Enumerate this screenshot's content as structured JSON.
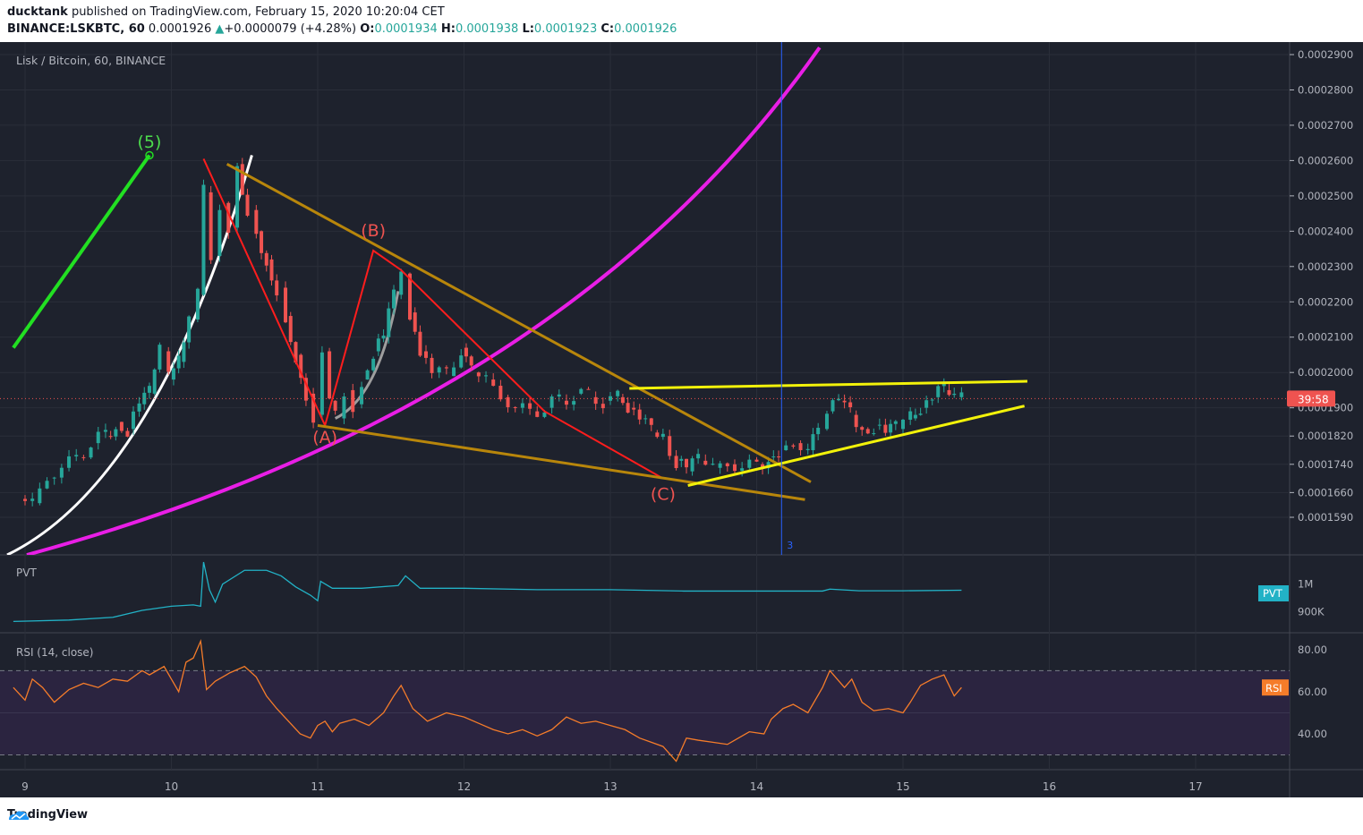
{
  "header": {
    "author": "ducktank",
    "published_text": " published on TradingView.com, February 15, 2020 10:20:04 CET",
    "symbol": "BINANCE:LSKBTC, 60",
    "last": "0.0001926",
    "change": "+0.0000079 (+4.28%)",
    "o_label": "O:",
    "o_val": "0.0001934",
    "h_label": "H:",
    "h_val": "0.0001938",
    "l_label": "L:",
    "l_val": "0.0001923",
    "c_label": "C:",
    "c_val": "0.0001926"
  },
  "footer": {
    "brand": "TradingView"
  },
  "chart_data": {
    "type": "candlestick",
    "title": "Lisk / Bitcoin, 60, BINANCE",
    "x_ticks": [
      "9",
      "10",
      "11",
      "12",
      "13",
      "14",
      "15",
      "16",
      "17"
    ],
    "y_ticks": [
      "0.0002900",
      "0.0002800",
      "0.0002700",
      "0.0002600",
      "0.0002500",
      "0.0002400",
      "0.0002300",
      "0.0002200",
      "0.0002100",
      "0.0002000",
      "0.0001900",
      "0.0001820",
      "0.0001740",
      "0.0001660",
      "0.0001590"
    ],
    "y_range": [
      0.000156,
      0.000291
    ],
    "price_tag": {
      "text": "39:58",
      "value": 0.0001926,
      "color": "#ef5350"
    },
    "close_path": [
      [
        8.95,
        0.0001642
      ],
      [
        9.05,
        0.000163
      ],
      [
        9.15,
        0.00017
      ],
      [
        9.25,
        0.000173
      ],
      [
        9.35,
        0.000176
      ],
      [
        9.45,
        0.00018
      ],
      [
        9.55,
        0.000182
      ],
      [
        9.62,
        0.000186
      ],
      [
        9.7,
        0.000184
      ],
      [
        9.78,
        0.000191
      ],
      [
        9.85,
        0.000194
      ],
      [
        9.92,
        0.000206
      ],
      [
        9.98,
        0.000198
      ],
      [
        10.05,
        0.000203
      ],
      [
        10.12,
        0.000215
      ],
      [
        10.18,
        0.000222
      ],
      [
        10.22,
        0.000251
      ],
      [
        10.27,
        0.000233
      ],
      [
        10.33,
        0.000248
      ],
      [
        10.39,
        0.000241
      ],
      [
        10.45,
        0.000259
      ],
      [
        10.52,
        0.000246
      ],
      [
        10.58,
        0.00024
      ],
      [
        10.65,
        0.000232
      ],
      [
        10.72,
        0.000224
      ],
      [
        10.78,
        0.000216
      ],
      [
        10.85,
        0.000205
      ],
      [
        10.92,
        0.000194
      ],
      [
        10.97,
        0.000188
      ],
      [
        11.03,
        0.000206
      ],
      [
        11.08,
        0.000192
      ],
      [
        11.12,
        0.000187
      ],
      [
        11.18,
        0.000195
      ],
      [
        11.24,
        0.000191
      ],
      [
        11.3,
        0.000198
      ],
      [
        11.38,
        0.000206
      ],
      [
        11.45,
        0.00021
      ],
      [
        11.52,
        0.000222
      ],
      [
        11.57,
        0.000228
      ],
      [
        11.63,
        0.000217
      ],
      [
        11.7,
        0.000206
      ],
      [
        11.78,
        0.0002
      ],
      [
        11.88,
        0.000199
      ],
      [
        11.98,
        0.000207
      ],
      [
        12.05,
        0.0002
      ],
      [
        12.15,
        0.000198
      ],
      [
        12.25,
        0.000193
      ],
      [
        12.35,
        0.00019
      ],
      [
        12.45,
        0.000189
      ],
      [
        12.55,
        0.00019
      ],
      [
        12.65,
        0.000192
      ],
      [
        12.75,
        0.000194
      ],
      [
        12.85,
        0.000193
      ],
      [
        12.95,
        0.000192
      ],
      [
        13.05,
        0.000193
      ],
      [
        13.12,
        0.00019
      ],
      [
        13.2,
        0.000187
      ],
      [
        13.28,
        0.000183
      ],
      [
        13.36,
        0.000182
      ],
      [
        13.45,
        0.000175
      ],
      [
        13.52,
        0.000172
      ],
      [
        13.6,
        0.000175
      ],
      [
        13.7,
        0.000173
      ],
      [
        13.8,
        0.000174
      ],
      [
        13.9,
        0.000173
      ],
      [
        14.0,
        0.000174
      ],
      [
        14.08,
        0.000176
      ],
      [
        14.15,
        0.000178
      ],
      [
        14.25,
        0.00018
      ],
      [
        14.35,
        0.000178
      ],
      [
        14.42,
        0.000184
      ],
      [
        14.48,
        0.000189
      ],
      [
        14.56,
        0.000192
      ],
      [
        14.64,
        0.000188
      ],
      [
        14.72,
        0.000184
      ],
      [
        14.8,
        0.000185
      ],
      [
        14.88,
        0.000183
      ],
      [
        14.95,
        0.000184
      ],
      [
        15.05,
        0.000187
      ],
      [
        15.12,
        0.00019
      ],
      [
        15.2,
        0.000193
      ],
      [
        15.28,
        0.000195
      ],
      [
        15.35,
        0.000193
      ],
      [
        15.4,
        0.0001926
      ]
    ],
    "drawings": {
      "wave_labels": [
        {
          "text": "(5)",
          "x": 9.85,
          "y": 0.0002636,
          "color": "#4cdc4c"
        },
        {
          "text": "(B)",
          "x": 11.38,
          "y": 0.0002385,
          "color": "#ef5350"
        },
        {
          "text": "(A)",
          "x": 11.05,
          "y": 0.00018,
          "color": "#ef5350"
        },
        {
          "text": "(C)",
          "x": 13.36,
          "y": 0.000164,
          "color": "#ef5350"
        }
      ],
      "green_line": [
        [
          8.92,
          0.000207
        ],
        [
          9.85,
          0.0002615
        ]
      ],
      "abc_path": [
        [
          10.22,
          0.0002605
        ],
        [
          11.05,
          0.000185
        ],
        [
          11.38,
          0.0002345
        ],
        [
          11.57,
          0.000229
        ],
        [
          12.55,
          0.000189
        ],
        [
          13.36,
          0.00017
        ]
      ],
      "wedge_upper": [
        [
          10.38,
          0.000259
        ],
        [
          14.37,
          0.000169
        ]
      ],
      "wedge_lower": [
        [
          11.0,
          0.000185
        ],
        [
          14.33,
          0.000164
        ]
      ],
      "yellow_upper": [
        [
          13.13,
          0.0001955
        ],
        [
          15.85,
          0.0001975
        ]
      ],
      "yellow_lower": [
        [
          13.53,
          0.000168
        ],
        [
          15.83,
          0.0001905
        ]
      ],
      "vline_x": 14.17,
      "vline_label": "3"
    },
    "pvt": {
      "label": "PVT",
      "y_ticks": [
        "1M",
        "900K"
      ],
      "tag": "PVT",
      "color": "#22b2c6",
      "range": [
        0.85,
        1.08
      ],
      "values": [
        [
          8.92,
          0.865
        ],
        [
          9.3,
          0.87
        ],
        [
          9.6,
          0.88
        ],
        [
          9.8,
          0.905
        ],
        [
          10.0,
          0.92
        ],
        [
          10.15,
          0.925
        ],
        [
          10.2,
          0.92
        ],
        [
          10.22,
          1.08
        ],
        [
          10.26,
          0.98
        ],
        [
          10.3,
          0.935
        ],
        [
          10.35,
          1.0
        ],
        [
          10.5,
          1.05
        ],
        [
          10.65,
          1.05
        ],
        [
          10.75,
          1.03
        ],
        [
          10.85,
          0.99
        ],
        [
          10.95,
          0.96
        ],
        [
          11.0,
          0.94
        ],
        [
          11.02,
          1.01
        ],
        [
          11.1,
          0.985
        ],
        [
          11.3,
          0.985
        ],
        [
          11.55,
          0.995
        ],
        [
          11.6,
          1.03
        ],
        [
          11.7,
          0.985
        ],
        [
          12.0,
          0.985
        ],
        [
          12.5,
          0.98
        ],
        [
          13.0,
          0.98
        ],
        [
          13.5,
          0.975
        ],
        [
          14.0,
          0.975
        ],
        [
          14.45,
          0.975
        ],
        [
          14.5,
          0.982
        ],
        [
          14.7,
          0.976
        ],
        [
          15.0,
          0.976
        ],
        [
          15.4,
          0.978
        ]
      ]
    },
    "rsi": {
      "label": "RSI (14, close)",
      "y_ticks": [
        "80.00",
        "60.00",
        "40.00"
      ],
      "band": [
        30,
        70
      ],
      "tag": "RSI",
      "color": "#f57c2a",
      "range": [
        23,
        88
      ],
      "values": [
        [
          8.92,
          62
        ],
        [
          9.0,
          56
        ],
        [
          9.05,
          66
        ],
        [
          9.12,
          62
        ],
        [
          9.2,
          55
        ],
        [
          9.3,
          61
        ],
        [
          9.4,
          64
        ],
        [
          9.5,
          62
        ],
        [
          9.6,
          66
        ],
        [
          9.7,
          65
        ],
        [
          9.8,
          70
        ],
        [
          9.85,
          68
        ],
        [
          9.95,
          72
        ],
        [
          10.0,
          66
        ],
        [
          10.05,
          60
        ],
        [
          10.1,
          74
        ],
        [
          10.15,
          76
        ],
        [
          10.2,
          84
        ],
        [
          10.24,
          61
        ],
        [
          10.3,
          65
        ],
        [
          10.4,
          69
        ],
        [
          10.5,
          72
        ],
        [
          10.58,
          67
        ],
        [
          10.65,
          58
        ],
        [
          10.72,
          52
        ],
        [
          10.8,
          46
        ],
        [
          10.88,
          40
        ],
        [
          10.95,
          38
        ],
        [
          11.0,
          44
        ],
        [
          11.05,
          46
        ],
        [
          11.1,
          41
        ],
        [
          11.15,
          45
        ],
        [
          11.25,
          47
        ],
        [
          11.35,
          44
        ],
        [
          11.45,
          50
        ],
        [
          11.52,
          58
        ],
        [
          11.57,
          63
        ],
        [
          11.65,
          52
        ],
        [
          11.75,
          46
        ],
        [
          11.88,
          50
        ],
        [
          12.0,
          48
        ],
        [
          12.1,
          45
        ],
        [
          12.2,
          42
        ],
        [
          12.3,
          40
        ],
        [
          12.4,
          42
        ],
        [
          12.5,
          39
        ],
        [
          12.6,
          42
        ],
        [
          12.7,
          48
        ],
        [
          12.8,
          45
        ],
        [
          12.9,
          46
        ],
        [
          13.0,
          44
        ],
        [
          13.1,
          42
        ],
        [
          13.2,
          38
        ],
        [
          13.28,
          36
        ],
        [
          13.36,
          34
        ],
        [
          13.45,
          27
        ],
        [
          13.52,
          38
        ],
        [
          13.6,
          37
        ],
        [
          13.7,
          36
        ],
        [
          13.8,
          35
        ],
        [
          13.85,
          37
        ],
        [
          13.95,
          41
        ],
        [
          14.05,
          40
        ],
        [
          14.1,
          47
        ],
        [
          14.18,
          52
        ],
        [
          14.25,
          54
        ],
        [
          14.35,
          50
        ],
        [
          14.45,
          62
        ],
        [
          14.5,
          70
        ],
        [
          14.6,
          62
        ],
        [
          14.65,
          66
        ],
        [
          14.72,
          55
        ],
        [
          14.8,
          51
        ],
        [
          14.9,
          52
        ],
        [
          15.0,
          50
        ],
        [
          15.05,
          55
        ],
        [
          15.12,
          63
        ],
        [
          15.2,
          66
        ],
        [
          15.28,
          68
        ],
        [
          15.35,
          58
        ],
        [
          15.4,
          62
        ]
      ]
    }
  }
}
